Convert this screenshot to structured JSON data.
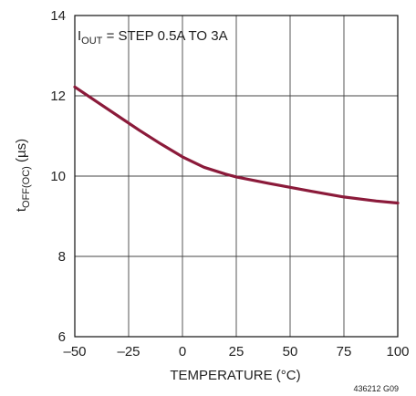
{
  "chart_data": {
    "type": "line",
    "annotation": {
      "main": "I",
      "sub": "OUT",
      "rest": " = STEP 0.5A TO 3A"
    },
    "xlabel": "TEMPERATURE (°C)",
    "ylabel": {
      "main": "t",
      "sub": "OFF(OC)",
      "rest": " (µs)"
    },
    "xlim": [
      -50,
      100
    ],
    "ylim": [
      6,
      14
    ],
    "x_ticks": [
      -50,
      -25,
      0,
      25,
      50,
      75,
      100
    ],
    "x_tick_labels": [
      "–50",
      "–25",
      "0",
      "25",
      "50",
      "75",
      "100"
    ],
    "y_ticks": [
      6,
      8,
      10,
      12,
      14
    ],
    "y_tick_labels": [
      "6",
      "8",
      "10",
      "12",
      "14"
    ],
    "grid": true,
    "series": [
      {
        "color": "#8b1a3a",
        "x": [
          -50,
          -40,
          -30,
          -20,
          -10,
          0,
          10,
          20,
          25,
          40,
          50,
          60,
          75,
          90,
          100
        ],
        "y": [
          12.22,
          11.86,
          11.5,
          11.14,
          10.8,
          10.48,
          10.22,
          10.05,
          9.98,
          9.82,
          9.72,
          9.62,
          9.48,
          9.38,
          9.33
        ]
      }
    ]
  },
  "figure_id": "436212 G09"
}
